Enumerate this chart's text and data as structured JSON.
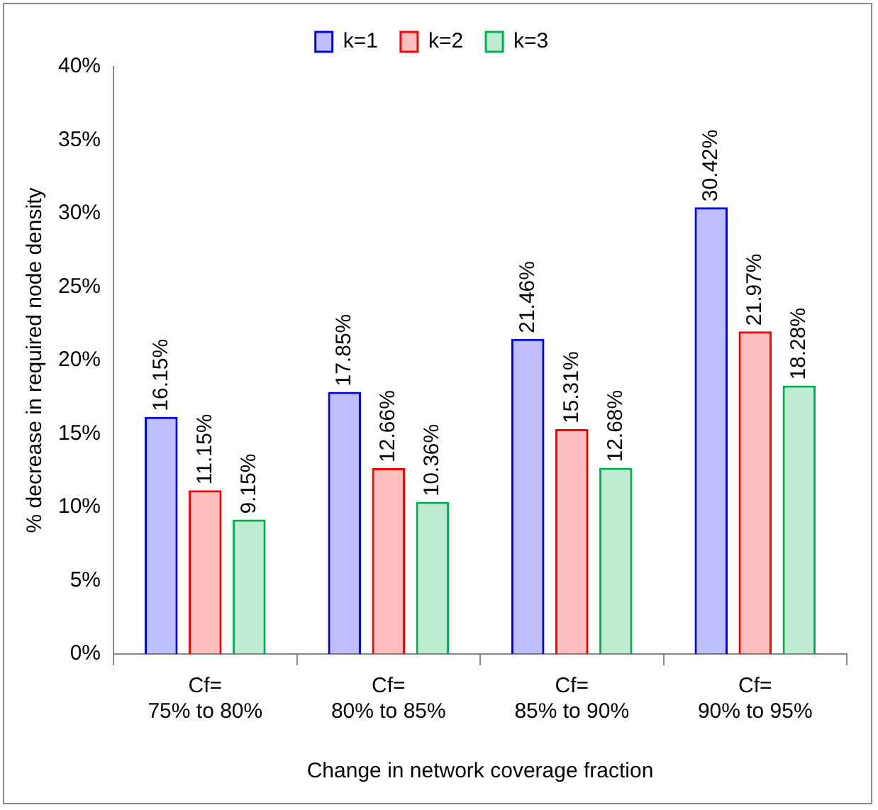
{
  "chart_data": {
    "type": "bar",
    "xlabel": "Change in network coverage fraction",
    "ylabel": "% decrease in required node density",
    "categories": [
      "Cf= 75% to 80%",
      "Cf= 80% to 85%",
      "Cf= 85% to 90%",
      "Cf= 90% to 95%"
    ],
    "series": [
      {
        "name": "k=1",
        "color": "#0000ff",
        "values": [
          16.15,
          17.85,
          21.46,
          30.42
        ],
        "value_labels": [
          "16.15%",
          "17.85%",
          "21.46%",
          "30.42%"
        ]
      },
      {
        "name": "k=2",
        "color": "#ff0000",
        "values": [
          11.15,
          12.66,
          15.31,
          21.97
        ],
        "value_labels": [
          "11.15%",
          "12.66%",
          "15.31%",
          "21.97%"
        ]
      },
      {
        "name": "k=3",
        "color": "#00b050",
        "values": [
          9.15,
          10.36,
          12.68,
          18.28
        ],
        "value_labels": [
          "9.15%",
          "10.36%",
          "12.68%",
          "18.28%"
        ]
      }
    ],
    "ylim": [
      0,
      40
    ],
    "yticks": [
      {
        "value": 0,
        "label": "0%"
      },
      {
        "value": 5,
        "label": "5%"
      },
      {
        "value": 10,
        "label": "10%"
      },
      {
        "value": 15,
        "label": "15%"
      },
      {
        "value": 20,
        "label": "20%"
      },
      {
        "value": 25,
        "label": "25%"
      },
      {
        "value": 30,
        "label": "30%"
      },
      {
        "value": 35,
        "label": "35%"
      },
      {
        "value": 40,
        "label": "40%"
      }
    ],
    "grid": false,
    "legend": "top"
  }
}
